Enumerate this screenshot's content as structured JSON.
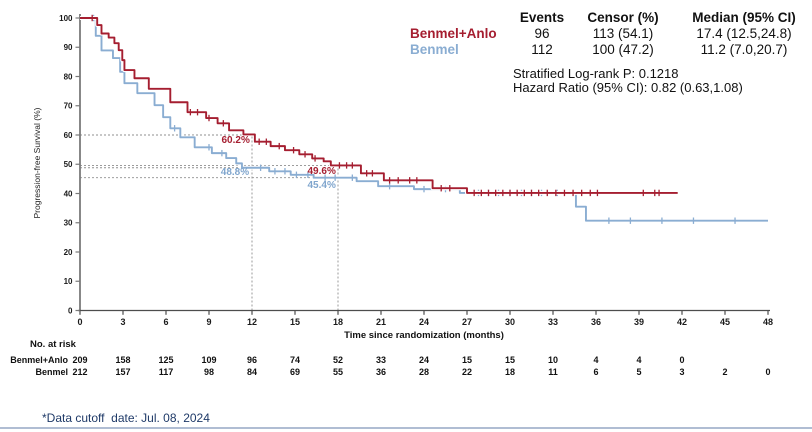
{
  "footnote": "*Data cutoff  date: Jul. 08, 2024",
  "stats": {
    "headers": [
      "Events",
      "Censor (%)",
      "Median (95% CI)"
    ],
    "rows": [
      {
        "events": "96",
        "censor": "113 (54.1)",
        "median": "17.4 (12.5,24.8)"
      },
      {
        "events": "112",
        "censor": "100 (47.2)",
        "median": "11.2 (7.0,20.7)"
      }
    ],
    "logrank": "Stratified Log-rank P: 0.1218",
    "hazard": "Hazard Ratio (95% CI): 0.82 (0.63,1.08)"
  },
  "risk_table": {
    "title": "No. at risk",
    "interval_months": 3,
    "rows": [
      {
        "label": "Benmel+Anlo",
        "values": [
          209,
          158,
          125,
          109,
          96,
          74,
          52,
          33,
          24,
          15,
          15,
          10,
          4,
          4,
          0
        ]
      },
      {
        "label": "Benmel",
        "values": [
          212,
          157,
          117,
          98,
          84,
          69,
          55,
          36,
          28,
          22,
          18,
          11,
          6,
          5,
          3,
          2,
          0
        ]
      }
    ]
  },
  "chart_data": {
    "type": "line",
    "subtype": "kaplan-meier-step",
    "title": "",
    "xlabel": "Time since randomization (months)",
    "ylabel": "Progression-free Survival (%)",
    "xlim": [
      0,
      48
    ],
    "ylim": [
      0,
      100
    ],
    "xticks": [
      0,
      3,
      6,
      9,
      12,
      15,
      18,
      21,
      24,
      27,
      30,
      33,
      36,
      39,
      42,
      45,
      48
    ],
    "yticks": [
      0,
      10,
      20,
      30,
      40,
      50,
      60,
      70,
      80,
      90,
      100
    ],
    "grid": false,
    "legend_position": "top-right",
    "series": [
      {
        "name": "Benmel",
        "color": "#8aadd2",
        "steps": [
          [
            0,
            100
          ],
          [
            1.1,
            93.9
          ],
          [
            1.5,
            88.9
          ],
          [
            2.3,
            86.3
          ],
          [
            2.8,
            81.6
          ],
          [
            3.1,
            77.7
          ],
          [
            4.0,
            74.3
          ],
          [
            5.2,
            70.2
          ],
          [
            5.8,
            66.1
          ],
          [
            6.3,
            62.3
          ],
          [
            7.0,
            59.2
          ],
          [
            8.0,
            55.8
          ],
          [
            9.2,
            53.8
          ],
          [
            10.2,
            52.1
          ],
          [
            10.9,
            50.3
          ],
          [
            11.3,
            48.8
          ],
          [
            13.2,
            47.6
          ],
          [
            14.7,
            46.4
          ],
          [
            16.3,
            45.4
          ],
          [
            19.3,
            44.2
          ],
          [
            20.8,
            42.5
          ],
          [
            23.3,
            41.5
          ],
          [
            26.5,
            40.2
          ],
          [
            34.6,
            35.5
          ],
          [
            35.3,
            30.7
          ],
          [
            48.0,
            30.7
          ]
        ],
        "censor_times": [
          0.95,
          6.6,
          9.0,
          9.9,
          12.6,
          13.6,
          14.3,
          15.1,
          15.9,
          17.1,
          17.8,
          19.0,
          21.6,
          24.0,
          25.5,
          27.8,
          28.5,
          29.2,
          30.0,
          30.8,
          31.5,
          32.2,
          33.3,
          36.9,
          38.4,
          40.6,
          42.8,
          45.7
        ]
      },
      {
        "name": "Benmel+Anlo",
        "color": "#a51e30",
        "steps": [
          [
            0,
            100
          ],
          [
            1.2,
            97.6
          ],
          [
            1.5,
            94.7
          ],
          [
            2.0,
            93.3
          ],
          [
            2.4,
            91.4
          ],
          [
            2.7,
            89.0
          ],
          [
            2.95,
            85.6
          ],
          [
            3.1,
            82.2
          ],
          [
            3.8,
            79.4
          ],
          [
            4.8,
            75.8
          ],
          [
            6.3,
            71.2
          ],
          [
            7.5,
            67.8
          ],
          [
            8.8,
            65.8
          ],
          [
            9.6,
            64.0
          ],
          [
            10.4,
            61.6
          ],
          [
            11.4,
            60.2
          ],
          [
            12.2,
            57.7
          ],
          [
            13.3,
            56.2
          ],
          [
            14.3,
            54.8
          ],
          [
            15.3,
            53.4
          ],
          [
            16.2,
            52.0
          ],
          [
            17.0,
            51.0
          ],
          [
            17.5,
            49.6
          ],
          [
            19.6,
            46.9
          ],
          [
            21.2,
            44.5
          ],
          [
            24.6,
            41.8
          ],
          [
            27.0,
            40.2
          ],
          [
            41.7,
            40.2
          ]
        ],
        "censor_times": [
          0.85,
          7.7,
          8.2,
          9.0,
          10.0,
          12.5,
          13.0,
          13.9,
          14.9,
          15.7,
          16.4,
          18.1,
          18.6,
          19.0,
          20.0,
          20.4,
          21.6,
          22.2,
          23.0,
          23.5,
          25.2,
          25.8,
          27.5,
          28.0,
          28.5,
          29.0,
          29.5,
          30.0,
          30.5,
          31.0,
          31.5,
          32.0,
          32.6,
          33.2,
          33.8,
          34.4,
          35.0,
          35.6,
          36.1,
          39.3,
          40.1,
          40.4
        ]
      }
    ],
    "annotations": [
      {
        "text": "60.2%",
        "month": 11.85,
        "percent": 57.3,
        "color": "#a51e30"
      },
      {
        "text": "48.8%",
        "month": 11.8,
        "percent": 46.3,
        "color": "#7fa5cd"
      },
      {
        "text": "49.6%",
        "month": 17.85,
        "percent": 46.7,
        "color": "#a51e30"
      },
      {
        "text": "45.4%",
        "month": 17.85,
        "percent": 41.9,
        "color": "#7fa5cd"
      }
    ],
    "guides": {
      "vertical": [
        {
          "month": 12,
          "to_percent": 60
        },
        {
          "month": 18,
          "to_percent": 49.6
        }
      ],
      "horizontal": [
        {
          "percent": 60,
          "to_month": 12
        },
        {
          "percent": 49.6,
          "to_month": 18
        },
        {
          "percent": 48.8,
          "to_month": 12
        },
        {
          "percent": 45.4,
          "to_month": 18
        }
      ]
    }
  }
}
